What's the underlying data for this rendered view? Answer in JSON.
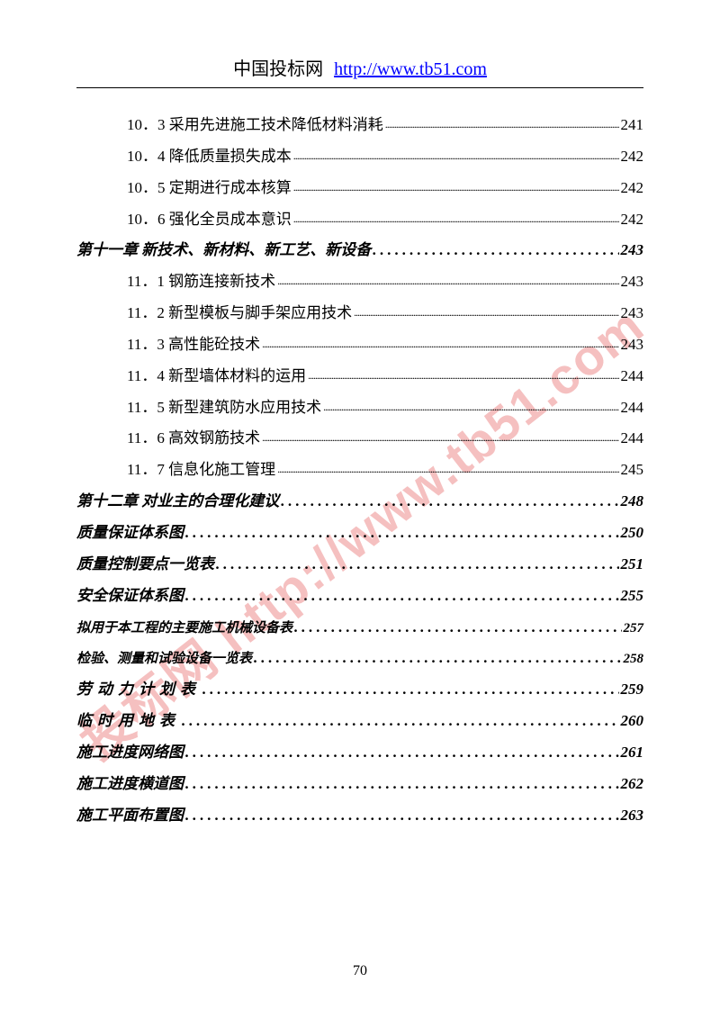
{
  "header": {
    "site_name": "中国投标网",
    "url": "http://www.tb51.com"
  },
  "watermark": "投标网 http://www.tb51.com",
  "page_number": "70",
  "colors": {
    "text": "#000000",
    "link": "#0000ff",
    "watermark": "rgba(220,30,30,0.28)",
    "background": "#ffffff"
  },
  "toc": [
    {
      "type": "sub",
      "num": "10．3",
      "title": "采用先进施工技术降低材料消耗",
      "page": "241",
      "dots": "fine"
    },
    {
      "type": "sub",
      "num": "10．4",
      "title": "降低质量损失成本",
      "page": "242",
      "dots": "fine"
    },
    {
      "type": "sub",
      "num": "10．5",
      "title": "定期进行成本核算",
      "page": "242",
      "dots": "fine"
    },
    {
      "type": "sub",
      "num": "10．6",
      "title": "强化全员成本意识",
      "page": "242",
      "dots": "fine"
    },
    {
      "type": "chapter",
      "title": "第十一章 新技术、新材料、新工艺、新设备",
      "page": "243",
      "dots": "coarse"
    },
    {
      "type": "sub",
      "num": "11．1",
      "title": "钢筋连接新技术",
      "page": "243",
      "dots": "fine"
    },
    {
      "type": "sub",
      "num": "11．2",
      "title": "新型模板与脚手架应用技术",
      "page": "243",
      "dots": "fine"
    },
    {
      "type": "sub",
      "num": "11．3",
      "title": "高性能砼技术",
      "page": "243",
      "dots": "fine"
    },
    {
      "type": "sub",
      "num": "11．4",
      "title": "新型墙体材料的运用",
      "page": "244",
      "dots": "fine"
    },
    {
      "type": "sub",
      "num": "11．5",
      "title": "新型建筑防水应用技术",
      "page": "244",
      "dots": "fine"
    },
    {
      "type": "sub",
      "num": "11．6",
      "title": "高效钢筋技术",
      "page": "244",
      "dots": "fine"
    },
    {
      "type": "sub",
      "num": "11．7",
      "title": "信息化施工管理",
      "page": "245",
      "dots": "fine"
    },
    {
      "type": "chapter",
      "title": "第十二章 对业主的合理化建议",
      "page": "248",
      "dots": "coarse"
    },
    {
      "type": "chapter",
      "title": "质量保证体系图",
      "page": "250",
      "dots": "coarse"
    },
    {
      "type": "chapter",
      "title": "质量控制要点一览表",
      "page": "251",
      "dots": "coarse"
    },
    {
      "type": "chapter",
      "title": "安全保证体系图",
      "page": "255",
      "dots": "coarse"
    },
    {
      "type": "chapter",
      "title": "拟用于本工程的主要施工机械设备表",
      "page": "257",
      "dots": "coarse",
      "small": true
    },
    {
      "type": "chapter",
      "title": "检验、测量和试验设备一览表",
      "page": "258",
      "dots": "coarse",
      "small": true
    },
    {
      "type": "chapter",
      "title": "劳动力计划表",
      "page": "259",
      "dots": "coarse",
      "spaced": true
    },
    {
      "type": "chapter",
      "title": "临时用地表",
      "page": "260",
      "dots": "coarse",
      "spaced": true
    },
    {
      "type": "chapter",
      "title": "施工进度网络图",
      "page": "261",
      "dots": "coarse"
    },
    {
      "type": "chapter",
      "title": "施工进度横道图",
      "page": "262",
      "dots": "coarse"
    },
    {
      "type": "chapter",
      "title": "施工平面布置图",
      "page": "263",
      "dots": "coarse"
    }
  ]
}
